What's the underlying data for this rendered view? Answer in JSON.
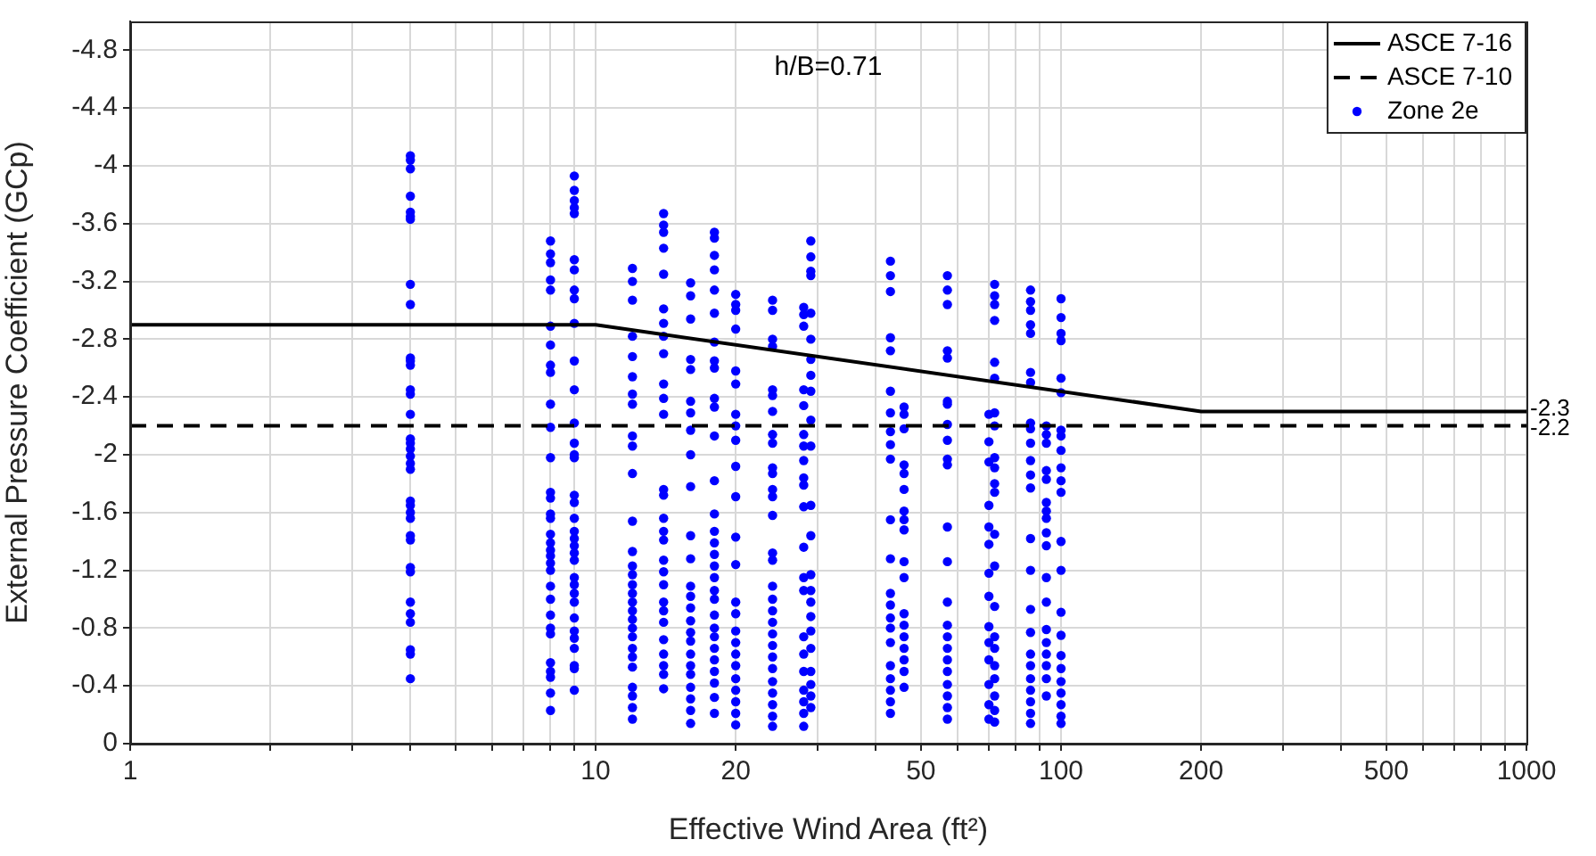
{
  "chart_data": {
    "type": "scatter",
    "xlabel": "Effective Wind Area (ft²)",
    "ylabel": "External Pressure Coefficient (GCp)",
    "log": "x",
    "grid": true,
    "legend": "top right",
    "xlim": [
      1,
      1000
    ],
    "xticks": [
      1,
      {
        "value": 2,
        "label": null
      },
      {
        "value": 3,
        "label": null
      },
      {
        "value": 4,
        "label": null
      },
      {
        "value": 5,
        "label": null
      },
      {
        "value": 6,
        "label": null
      },
      {
        "value": 7,
        "label": null
      },
      {
        "value": 8,
        "label": null
      },
      {
        "value": 9,
        "label": null
      },
      10,
      20,
      {
        "value": 30,
        "label": null
      },
      {
        "value": 40,
        "label": null
      },
      50,
      {
        "value": 60,
        "label": null
      },
      {
        "value": 70,
        "label": null
      },
      {
        "value": 80,
        "label": null
      },
      {
        "value": 90,
        "label": null
      },
      100,
      200,
      {
        "value": 300,
        "label": null
      },
      {
        "value": 400,
        "label": null
      },
      500,
      {
        "value": 600,
        "label": null
      },
      {
        "value": 700,
        "label": null
      },
      {
        "value": 800,
        "label": null
      },
      {
        "value": 900,
        "label": null
      },
      1000
    ],
    "ylim": [
      0,
      -5
    ],
    "yticks": [
      0,
      -0.4,
      -0.8,
      -1.2,
      -1.6,
      -2,
      -2.4,
      -2.8,
      -3.2,
      -3.6,
      -4,
      -4.4,
      -4.8
    ],
    "annotations": [
      "h/B=0.71",
      {
        "text": "-2.3",
        "x": 1000,
        "y": -2.3
      },
      {
        "text": "-2.2",
        "x": 1000,
        "y": -2.2
      }
    ],
    "series": [
      {
        "name": "ASCE 7-16",
        "type": "line",
        "color": "#000000",
        "line_style": "solid",
        "marker": "none",
        "x": [
          1,
          10,
          200,
          1000
        ],
        "values": [
          -2.9,
          -2.9,
          -2.3,
          -2.3
        ]
      },
      {
        "name": "ASCE 7-10",
        "type": "line",
        "color": "#000000",
        "line_style": "dashed",
        "marker": "none",
        "x": [
          1,
          1000
        ],
        "values": [
          -2.2,
          -2.2
        ]
      },
      {
        "name": "Zone 2e",
        "color": "#0000ff",
        "marker": "circle",
        "x": [
          4,
          4,
          4,
          4,
          4,
          4,
          4,
          4,
          4,
          4,
          4,
          4,
          4,
          4,
          4,
          4,
          4,
          4,
          4,
          4,
          4,
          4,
          4,
          4,
          4,
          4,
          4,
          4,
          4,
          4,
          4,
          4,
          4,
          4,
          4,
          8,
          8,
          8,
          8,
          8,
          8,
          8,
          8,
          8,
          8,
          8,
          8,
          8,
          8,
          8,
          8,
          8,
          8,
          8,
          8,
          8,
          8,
          8,
          8,
          8,
          8,
          8,
          8,
          8,
          8,
          8,
          8,
          9,
          9,
          9,
          9,
          9,
          9,
          9,
          9,
          9,
          9,
          9,
          9,
          9,
          9,
          9,
          9,
          9,
          9,
          9,
          9,
          9,
          9,
          9,
          9,
          9,
          9,
          9,
          9,
          9,
          9,
          9,
          9,
          9,
          9,
          9,
          12,
          12,
          12,
          12,
          12,
          12,
          12,
          12,
          12,
          12,
          12,
          12,
          12,
          12,
          12,
          12,
          12,
          12,
          12,
          12,
          12,
          12,
          12,
          12,
          12,
          12,
          12,
          12,
          12,
          14,
          14,
          14,
          14,
          14,
          14,
          14,
          14,
          14,
          14,
          14,
          14,
          14,
          14,
          14,
          14,
          14,
          14,
          14,
          14,
          14,
          14,
          14,
          14,
          14,
          14,
          14,
          14,
          16,
          16,
          16,
          16,
          16,
          16,
          16,
          16,
          16,
          16,
          16,
          16,
          16,
          16,
          16,
          16,
          16,
          16,
          16,
          16,
          16,
          16,
          16,
          16,
          16,
          18,
          18,
          18,
          18,
          18,
          18,
          18,
          18,
          18,
          18,
          18,
          18,
          18,
          18,
          18,
          18,
          18,
          18,
          18,
          18,
          18,
          18,
          18,
          18,
          18,
          18,
          18,
          18,
          18,
          18,
          20,
          20,
          20,
          20,
          20,
          20,
          20,
          20,
          20,
          20,
          20,
          20,
          20,
          20,
          20,
          20,
          20,
          20,
          20,
          20,
          20,
          20,
          20,
          20,
          24,
          24,
          24,
          24,
          24,
          24,
          24,
          24,
          24,
          24,
          24,
          24,
          24,
          24,
          24,
          24,
          24,
          24,
          24,
          24,
          24,
          24,
          24,
          24,
          24,
          24,
          24,
          24,
          24,
          28,
          28,
          28,
          28,
          28,
          28,
          28,
          28,
          28,
          28,
          28,
          28,
          28,
          28,
          28,
          28,
          28,
          28,
          28,
          28,
          28,
          29,
          29,
          29,
          29,
          29,
          29,
          29,
          29,
          29,
          29,
          29,
          29,
          29,
          29,
          29,
          29,
          29,
          29,
          29,
          29,
          29,
          29,
          29,
          43,
          43,
          43,
          43,
          43,
          43,
          43,
          43,
          43,
          43,
          43,
          43,
          43,
          43,
          43,
          43,
          43,
          43,
          43,
          43,
          43,
          43,
          46,
          46,
          46,
          46,
          46,
          46,
          46,
          46,
          46,
          46,
          46,
          46,
          46,
          46,
          46,
          46,
          46,
          46,
          57,
          57,
          57,
          57,
          57,
          57,
          57,
          57,
          57,
          57,
          57,
          57,
          57,
          57,
          57,
          57,
          57,
          57,
          57,
          57,
          57,
          57,
          57,
          70,
          70,
          70,
          70,
          70,
          70,
          70,
          70,
          70,
          70,
          70,
          70,
          70,
          70,
          72,
          72,
          72,
          72,
          72,
          72,
          72,
          72,
          72,
          72,
          72,
          72,
          72,
          72,
          72,
          72,
          72,
          72,
          72,
          72,
          72,
          72,
          86,
          86,
          86,
          86,
          86,
          86,
          86,
          86,
          86,
          86,
          86,
          86,
          86,
          86,
          86,
          86,
          86,
          86,
          86,
          86,
          86,
          86,
          86,
          86,
          93,
          93,
          93,
          93,
          93,
          93,
          93,
          93,
          93,
          93,
          93,
          93,
          93,
          93,
          93,
          93,
          93,
          93,
          100,
          100,
          100,
          100,
          100,
          100,
          100,
          100,
          100,
          100,
          100,
          100,
          100,
          100,
          100,
          100,
          100,
          100,
          100,
          100,
          100,
          100,
          100
        ],
        "values": [
          -4.07,
          -4.04,
          -3.98,
          -3.79,
          -3.68,
          -3.65,
          -3.63,
          -3.18,
          -3.04,
          -2.67,
          -2.65,
          -2.62,
          -2.45,
          -2.42,
          -2.28,
          -2.11,
          -2.08,
          -2.04,
          -1.99,
          -1.94,
          -1.9,
          -1.68,
          -1.65,
          -1.6,
          -1.56,
          -1.44,
          -1.41,
          -1.22,
          -1.19,
          -0.98,
          -0.9,
          -0.84,
          -0.65,
          -0.62,
          -0.45,
          -3.48,
          -3.39,
          -3.33,
          -3.21,
          -3.14,
          -2.89,
          -2.76,
          -2.62,
          -2.57,
          -2.35,
          -2.19,
          -1.98,
          -1.74,
          -1.7,
          -1.59,
          -1.56,
          -1.45,
          -1.39,
          -1.34,
          -1.3,
          -1.25,
          -1.2,
          -1.09,
          -1,
          -0.89,
          -0.8,
          -0.76,
          -0.56,
          -0.5,
          -0.46,
          -0.35,
          -0.23,
          -3.93,
          -3.83,
          -3.76,
          -3.71,
          -3.67,
          -3.35,
          -3.28,
          -3.14,
          -3.08,
          -2.91,
          -2.65,
          -2.45,
          -2.22,
          -2.08,
          -2,
          -1.98,
          -1.72,
          -1.67,
          -1.56,
          -1.47,
          -1.42,
          -1.37,
          -1.32,
          -1.27,
          -1.15,
          -1.1,
          -1.04,
          -0.98,
          -0.87,
          -0.78,
          -0.73,
          -0.66,
          -0.54,
          -0.52,
          -0.37,
          -3.29,
          -3.2,
          -3.07,
          -2.82,
          -2.68,
          -2.54,
          -2.42,
          -2.35,
          -2.13,
          -2.06,
          -1.87,
          -1.54,
          -1.33,
          -1.23,
          -1.17,
          -1.1,
          -1.04,
          -0.98,
          -0.92,
          -0.86,
          -0.8,
          -0.74,
          -0.66,
          -0.6,
          -0.53,
          -0.39,
          -0.33,
          -0.25,
          -0.17,
          -3.67,
          -3.59,
          -3.54,
          -3.43,
          -3.25,
          -3.01,
          -2.91,
          -2.82,
          -2.7,
          -2.49,
          -2.39,
          -2.28,
          -1.76,
          -1.72,
          -1.56,
          -1.47,
          -1.41,
          -1.27,
          -1.19,
          -1.1,
          -0.98,
          -0.92,
          -0.84,
          -0.72,
          -0.62,
          -0.54,
          -0.48,
          -0.38,
          -3.19,
          -3.1,
          -2.94,
          -2.66,
          -2.59,
          -2.37,
          -2.29,
          -2.17,
          -2,
          -1.78,
          -1.44,
          -1.28,
          -1.09,
          -1.02,
          -0.94,
          -0.85,
          -0.77,
          -0.71,
          -0.62,
          -0.54,
          -0.48,
          -0.39,
          -0.31,
          -0.23,
          -0.14,
          -3.54,
          -3.5,
          -3.38,
          -3.28,
          -3.14,
          -2.98,
          -2.78,
          -2.65,
          -2.6,
          -2.39,
          -2.33,
          -2.13,
          -1.82,
          -1.59,
          -1.47,
          -1.39,
          -1.31,
          -1.23,
          -1.15,
          -1.06,
          -1,
          -0.89,
          -0.8,
          -0.74,
          -0.66,
          -0.58,
          -0.5,
          -0.42,
          -0.32,
          -0.21,
          -3.11,
          -3.04,
          -3,
          -2.87,
          -2.58,
          -2.49,
          -2.28,
          -2.2,
          -2.1,
          -1.92,
          -1.71,
          -1.43,
          -1.24,
          -0.98,
          -0.9,
          -0.78,
          -0.7,
          -0.62,
          -0.54,
          -0.45,
          -0.37,
          -0.29,
          -0.21,
          -0.13,
          -3.07,
          -3,
          -2.8,
          -2.75,
          -2.45,
          -2.41,
          -2.3,
          -2.14,
          -2.08,
          -1.91,
          -1.87,
          -1.76,
          -1.71,
          -1.58,
          -1.32,
          -1.27,
          -1.09,
          -1,
          -0.92,
          -0.84,
          -0.76,
          -0.68,
          -0.6,
          -0.52,
          -0.43,
          -0.35,
          -0.27,
          -0.19,
          -0.12,
          -3.02,
          -2.97,
          -2.89,
          -2.45,
          -2.34,
          -2.14,
          -2.06,
          -1.96,
          -1.84,
          -1.79,
          -1.64,
          -1.36,
          -1.15,
          -1.06,
          -0.74,
          -0.62,
          -0.5,
          -0.37,
          -0.29,
          -0.21,
          -0.12,
          -3.48,
          -3.37,
          -3.27,
          -3.24,
          -2.98,
          -2.8,
          -2.66,
          -2.55,
          -2.44,
          -2.24,
          -2.06,
          -1.65,
          -1.44,
          -1.17,
          -1.06,
          -0.98,
          -0.88,
          -0.78,
          -0.66,
          -0.5,
          -0.41,
          -0.33,
          -0.25,
          -3.34,
          -3.24,
          -3.13,
          -2.81,
          -2.72,
          -2.44,
          -2.29,
          -2.16,
          -2.07,
          -1.97,
          -1.55,
          -1.28,
          -1.04,
          -0.96,
          -0.87,
          -0.8,
          -0.7,
          -0.54,
          -0.45,
          -0.37,
          -0.29,
          -0.21,
          -2.33,
          -2.28,
          -2.18,
          -1.93,
          -1.87,
          -1.76,
          -1.61,
          -1.55,
          -1.48,
          -1.26,
          -1.15,
          -0.9,
          -0.82,
          -0.74,
          -0.66,
          -0.58,
          -0.5,
          -0.39,
          -3.24,
          -3.14,
          -3.04,
          -2.72,
          -2.67,
          -2.37,
          -2.35,
          -2.21,
          -2.1,
          -1.97,
          -1.93,
          -1.5,
          -1.26,
          -0.98,
          -0.82,
          -0.74,
          -0.66,
          -0.58,
          -0.5,
          -0.41,
          -0.33,
          -0.25,
          -0.17,
          -2.28,
          -2.09,
          -1.95,
          -1.65,
          -1.5,
          -1.38,
          -1.18,
          -1.02,
          -0.81,
          -0.7,
          -0.58,
          -0.41,
          -0.27,
          -0.17,
          -3.18,
          -3.1,
          -3.04,
          -2.93,
          -2.64,
          -2.53,
          -2.29,
          -2.2,
          -1.98,
          -1.91,
          -1.8,
          -1.74,
          -1.45,
          -1.23,
          -0.95,
          -0.74,
          -0.66,
          -0.54,
          -0.45,
          -0.33,
          -0.23,
          -0.15,
          -3.14,
          -3.06,
          -3,
          -2.9,
          -2.84,
          -2.57,
          -2.5,
          -2.22,
          -2.18,
          -2.08,
          -1.96,
          -1.86,
          -1.77,
          -1.42,
          -1.2,
          -0.93,
          -0.77,
          -0.62,
          -0.54,
          -0.45,
          -0.37,
          -0.29,
          -0.21,
          -0.14,
          -2.2,
          -2.14,
          -2.08,
          -1.89,
          -1.83,
          -1.67,
          -1.61,
          -1.56,
          -1.46,
          -1.37,
          -1.15,
          -0.98,
          -0.79,
          -0.7,
          -0.62,
          -0.54,
          -0.45,
          -0.33,
          -3.08,
          -2.95,
          -2.84,
          -2.79,
          -2.53,
          -2.43,
          -2.17,
          -2.13,
          -2.03,
          -1.91,
          -1.82,
          -1.74,
          -1.4,
          -1.2,
          -0.91,
          -0.75,
          -0.61,
          -0.52,
          -0.43,
          -0.35,
          -0.27,
          -0.19,
          -0.14
        ]
      }
    ]
  }
}
